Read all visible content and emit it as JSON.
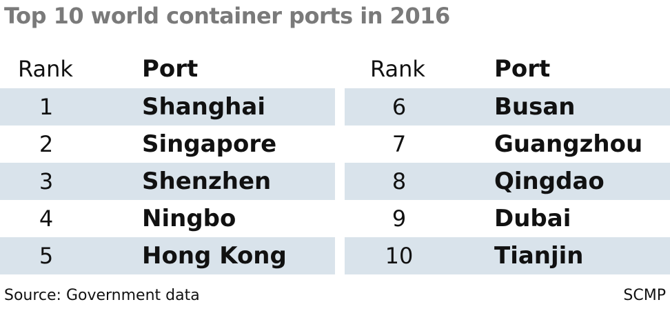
{
  "title": "Top 10 world container ports in 2016",
  "headers": {
    "rank": "Rank",
    "port": "Port"
  },
  "left_rows": [
    {
      "rank": "1",
      "port": "Shanghai"
    },
    {
      "rank": "2",
      "port": "Singapore"
    },
    {
      "rank": "3",
      "port": "Shenzhen"
    },
    {
      "rank": "4",
      "port": "Ningbo"
    },
    {
      "rank": "5",
      "port": "Hong Kong"
    }
  ],
  "right_rows": [
    {
      "rank": "6",
      "port": "Busan"
    },
    {
      "rank": "7",
      "port": "Guangzhou"
    },
    {
      "rank": "8",
      "port": "Qingdao"
    },
    {
      "rank": "9",
      "port": "Dubai"
    },
    {
      "rank": "10",
      "port": "Tianjin"
    }
  ],
  "source": "Source: Government data",
  "credit": "SCMP",
  "colors": {
    "title": "#7a7a7a",
    "row_shade": "#d9e3eb",
    "text": "#111111"
  }
}
